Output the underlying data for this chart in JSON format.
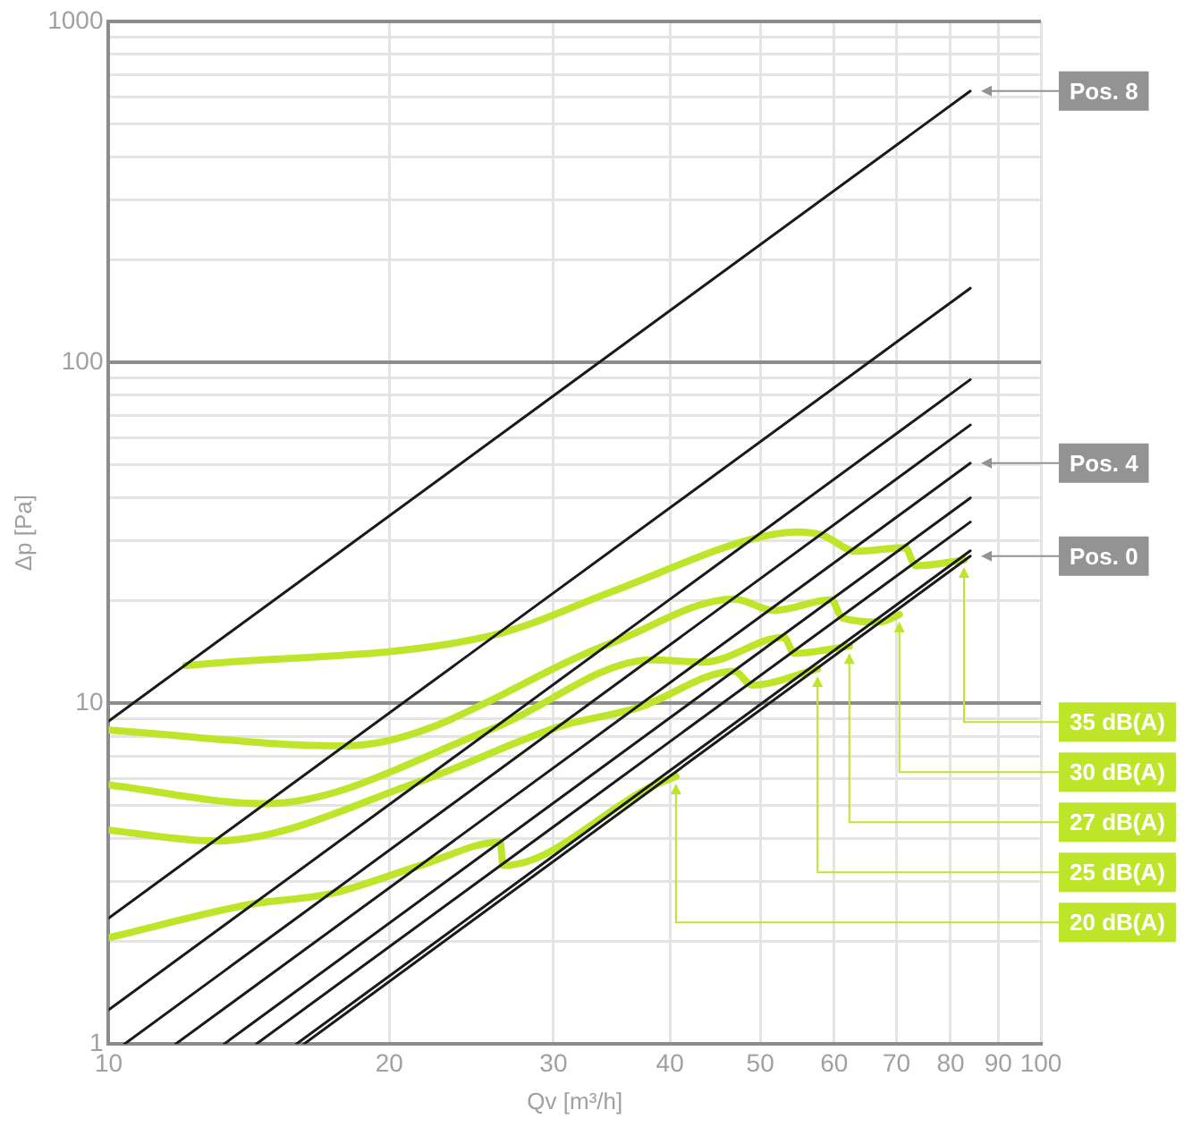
{
  "chart_data": {
    "type": "line",
    "xlabel": "Qv [m³/h]",
    "ylabel": "Δp [Pa]",
    "log": "xy",
    "xlim": [
      10,
      100
    ],
    "ylim": [
      1,
      1000
    ],
    "xticks": [
      10,
      20,
      30,
      40,
      50,
      60,
      70,
      80,
      90,
      100
    ],
    "yticks": [
      1,
      {
        "value": 2,
        "label": null
      },
      {
        "value": 3,
        "label": null
      },
      {
        "value": 4,
        "label": null
      },
      {
        "value": 5,
        "label": null
      },
      {
        "value": 6,
        "label": null
      },
      {
        "value": 7,
        "label": null
      },
      {
        "value": 8,
        "label": null
      },
      {
        "value": 9,
        "label": null
      },
      10,
      {
        "value": 20,
        "label": null
      },
      {
        "value": 30,
        "label": null
      },
      {
        "value": 40,
        "label": null
      },
      {
        "value": 50,
        "label": null
      },
      {
        "value": 60,
        "label": null
      },
      {
        "value": 70,
        "label": null
      },
      {
        "value": 80,
        "label": null
      },
      {
        "value": 90,
        "label": null
      },
      100,
      {
        "value": 200,
        "label": null
      },
      {
        "value": 300,
        "label": null
      },
      {
        "value": 400,
        "label": null
      },
      {
        "value": 500,
        "label": null
      },
      {
        "value": 600,
        "label": null
      },
      {
        "value": 700,
        "label": null
      },
      {
        "value": 800,
        "label": null
      },
      {
        "value": 900,
        "label": null
      },
      1000
    ],
    "grid": true,
    "legend": false,
    "marker": "none",
    "line_style": "solid",
    "series": [
      {
        "name": "Pos. 8",
        "color": "#1a1a1a",
        "x": [
          10,
          84
        ],
        "values": [
          8.86,
          625
        ]
      },
      {
        "color": "#1a1a1a",
        "x": [
          10,
          84
        ],
        "values": [
          2.34,
          165
        ]
      },
      {
        "color": "#1a1a1a",
        "x": [
          10,
          84
        ],
        "values": [
          1.26,
          89
        ]
      },
      {
        "color": "#1a1a1a",
        "x": [
          10.4,
          84
        ],
        "values": [
          1,
          65.5
        ]
      },
      {
        "name": "Pos. 4",
        "color": "#1a1a1a",
        "x": [
          11.8,
          84
        ],
        "values": [
          1,
          50.6
        ]
      },
      {
        "color": "#1a1a1a",
        "x": [
          13.3,
          84
        ],
        "values": [
          1,
          40
        ]
      },
      {
        "color": "#1a1a1a",
        "x": [
          14.4,
          84
        ],
        "values": [
          1,
          34
        ]
      },
      {
        "color": "#1a1a1a",
        "x": [
          15.9,
          84
        ],
        "values": [
          1,
          28
        ]
      },
      {
        "name": "Pos. 0",
        "color": "#1a1a1a",
        "x": [
          16.2,
          84
        ],
        "values": [
          1,
          27
        ]
      },
      {
        "name": "35 dB(A)",
        "color": "#bde52a",
        "x": [
          12.1,
          25.8,
          34.6,
          49.0,
          54.8,
          58.3,
          63.3,
          71.5,
          73.4,
          82.7
        ],
        "values": [
          12.9,
          15.8,
          21.2,
          30.3,
          31.8,
          31.1,
          27.9,
          28.6,
          25.3,
          26.3
        ]
      },
      {
        "name": "30 dB(A)",
        "color": "#bde52a",
        "x": [
          10,
          17.9,
          34.6,
          46.9,
          51.7,
          59.6,
          61.2,
          67.2,
          70.5
        ],
        "values": [
          8.34,
          7.49,
          15.0,
          20.2,
          18.7,
          20.1,
          17.8,
          17.3,
          18.2
        ]
      },
      {
        "name": "27 dB(A)",
        "color": "#bde52a",
        "x": [
          10,
          14.7,
          25.8,
          38.3,
          43.5,
          53.0,
          54.4,
          62.3
        ],
        "values": [
          5.76,
          5.07,
          8.41,
          13.4,
          13.2,
          15.6,
          14.0,
          14.7
        ]
      },
      {
        "name": "25 dB(A)",
        "color": "#bde52a",
        "x": [
          10,
          13.0,
          21.6,
          30.4,
          37.0,
          46.9,
          49.0,
          57.6
        ],
        "values": [
          4.24,
          3.94,
          5.9,
          8.52,
          9.7,
          12.4,
          11.3,
          12.6
        ]
      },
      {
        "name": "20 dB(A)",
        "color": "#bde52a",
        "x": [
          10,
          14.2,
          17.3,
          21.6,
          26.3,
          26.5,
          38.3,
          40.6
        ],
        "values": [
          2.05,
          2.57,
          2.76,
          3.34,
          3.91,
          3.34,
          5.71,
          6.1
        ]
      }
    ]
  }
}
